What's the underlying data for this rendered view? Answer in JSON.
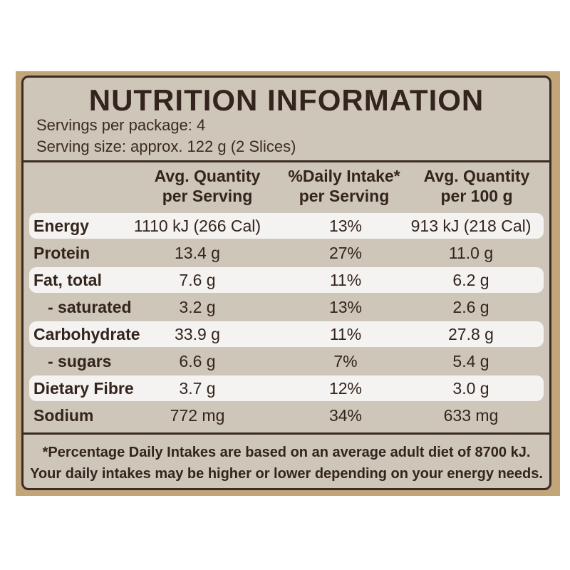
{
  "title": "NUTRITION INFORMATION",
  "servings_per_package": "Servings per package: 4",
  "serving_size": "Serving size: approx. 122 g (2 Slices)",
  "columns": [
    {
      "line1": "Avg. Quantity",
      "line2": "per Serving"
    },
    {
      "line1": "%Daily Intake*",
      "line2": "per Serving"
    },
    {
      "line1": "Avg. Quantity",
      "line2": "per 100 g"
    }
  ],
  "rows": [
    {
      "label": "Energy",
      "per_serving": "1110 kJ (266 Cal)",
      "daily_intake": "13%",
      "per_100g": "913 kJ (218 Cal)"
    },
    {
      "label": "Protein",
      "per_serving": "13.4 g",
      "daily_intake": "27%",
      "per_100g": "11.0 g"
    },
    {
      "label": "Fat, total",
      "per_serving": "7.6 g",
      "daily_intake": "11%",
      "per_100g": "6.2 g"
    },
    {
      "label": "- saturated",
      "per_serving": "3.2 g",
      "daily_intake": "13%",
      "per_100g": "2.6 g"
    },
    {
      "label": "Carbohydrate",
      "per_serving": "33.9 g",
      "daily_intake": "11%",
      "per_100g": "27.8 g"
    },
    {
      "label": "- sugars",
      "per_serving": "6.6 g",
      "daily_intake": "7%",
      "per_100g": "5.4 g"
    },
    {
      "label": "Dietary Fibre",
      "per_serving": "3.7 g",
      "daily_intake": "12%",
      "per_100g": "3.0 g"
    },
    {
      "label": "Sodium",
      "per_serving": "772 mg",
      "daily_intake": "34%",
      "per_100g": "633 mg"
    }
  ],
  "footnote": {
    "line1": "*Percentage Daily Intakes are based on an average adult diet of 8700 kJ.",
    "line2": "Your daily intakes may be higher or lower depending on your energy needs."
  },
  "colors": {
    "panel": "#cfc6ba",
    "border": "#3a2b24",
    "row_highlight": "#f5f3f1",
    "frame": "#c2a679"
  }
}
